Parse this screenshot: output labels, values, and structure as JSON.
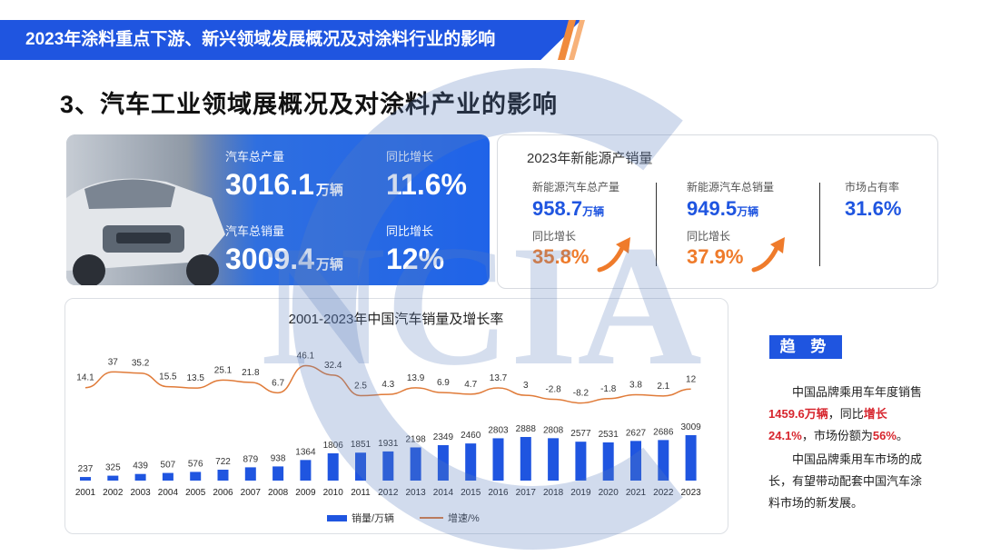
{
  "header": {
    "banner_title": "2023年涂料重点下游、新兴领域发展概况及对涂料行业的影响",
    "section_title": "3、汽车工业领域展概况及对涂料产业的影响"
  },
  "summary": {
    "production_label": "汽车总产量",
    "production_value": "3016.1",
    "production_unit": "万辆",
    "production_yoy_label": "同比增长",
    "production_yoy": "11.6%",
    "sales_label": "汽车总销量",
    "sales_value": "3009.4",
    "sales_unit": "万辆",
    "sales_yoy_label": "同比增长",
    "sales_yoy": "12%"
  },
  "nev": {
    "title": "2023年新能源产销量",
    "prod_label": "新能源汽车总产量",
    "prod_value": "958.7",
    "prod_unit": "万辆",
    "prod_yoy_label": "同比增长",
    "prod_yoy": "35.8%",
    "sales_label": "新能源汽车总销量",
    "sales_value": "949.5",
    "sales_unit": "万辆",
    "sales_yoy_label": "同比增长",
    "sales_yoy": "37.9%",
    "share_label": "市场占有率",
    "share_value": "31.6%"
  },
  "chart_data": {
    "type": "bar",
    "title": "2001-2023年中国汽车销量及增长率",
    "categories": [
      "2001",
      "2002",
      "2003",
      "2004",
      "2005",
      "2006",
      "2007",
      "2008",
      "2009",
      "2010",
      "2011",
      "2012",
      "2013",
      "2014",
      "2015",
      "2016",
      "2017",
      "2018",
      "2019",
      "2020",
      "2021",
      "2022",
      "2023"
    ],
    "series": [
      {
        "name": "销量/万辆",
        "type": "bar",
        "color": "#1f55e0",
        "values": [
          237,
          325,
          439,
          507,
          576,
          722,
          879,
          938,
          1364,
          1806,
          1851,
          1931,
          2198,
          2349,
          2460,
          2803,
          2888,
          2808,
          2577,
          2531,
          2627,
          2686,
          3009
        ]
      },
      {
        "name": "增速/%",
        "type": "line",
        "color": "#e07b39",
        "values": [
          14.1,
          37,
          35.2,
          15.5,
          13.5,
          25.1,
          21.8,
          6.7,
          46.1,
          32.4,
          2.5,
          4.3,
          13.9,
          6.9,
          4.7,
          13.7,
          3,
          -2.8,
          -8.2,
          -1.8,
          3.8,
          2.1,
          12
        ]
      }
    ],
    "legend_position": "bottom",
    "grid": false
  },
  "trend": {
    "badge": "趋 势",
    "p1_a": "中国品牌乘用车年度销售",
    "p1_b": "1459.6万辆",
    "p1_c": "，同比",
    "p1_d": "增长24.1%",
    "p1_e": "，市场份额为",
    "p1_f": "56%",
    "p1_g": "。",
    "p2": "中国品牌乘用车市场的成长，有望带动配套中国汽车涂料市场的新发展。"
  },
  "watermark": {
    "text": "NCIA"
  },
  "colors": {
    "brand_blue": "#1f55e0",
    "accent_orange": "#ef7b2b",
    "highlight_red": "#d7262e"
  }
}
